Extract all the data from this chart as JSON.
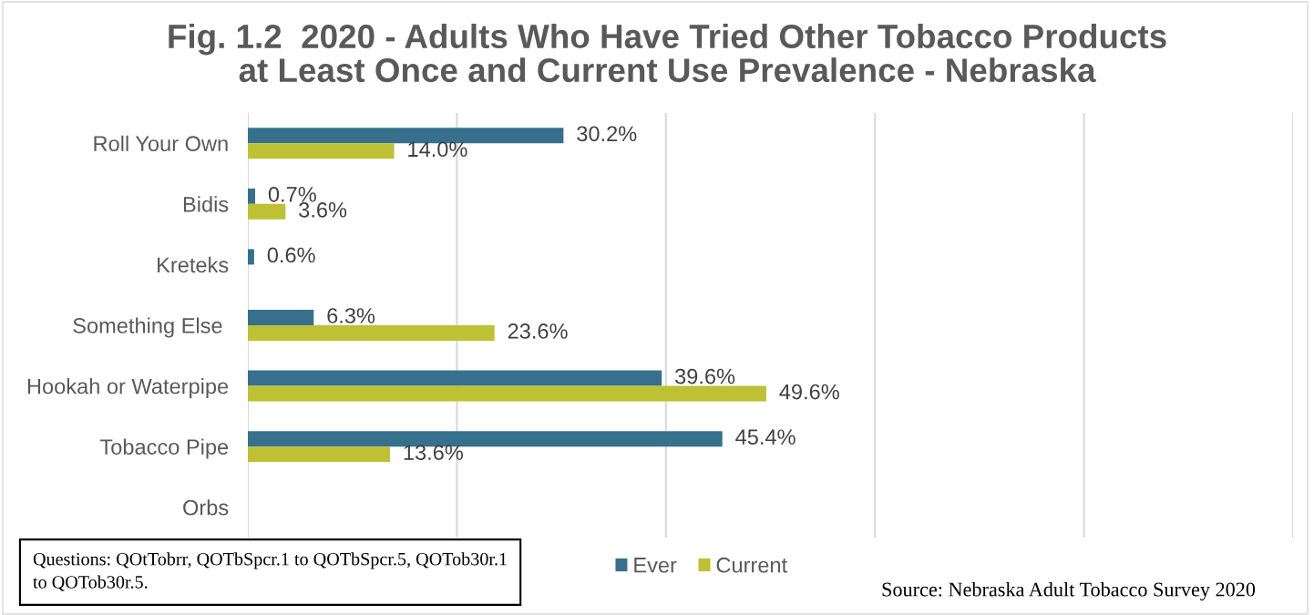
{
  "chart_data": {
    "type": "bar",
    "orientation": "horizontal",
    "title": "Fig. 1.2  2020 - Adults Who Have Tried Other Tobacco Products at Least Once and Current Use Prevalence - Nebraska",
    "categories": [
      "Roll Your Own",
      "Bidis",
      "Kreteks",
      "Something Else ",
      "Hookah or Waterpipe",
      "Tobacco Pipe",
      "Orbs"
    ],
    "series": [
      {
        "name": "Ever",
        "color": "#37708d",
        "values": [
          30.2,
          0.7,
          0.6,
          6.3,
          39.6,
          45.4,
          null
        ],
        "value_labels": [
          "30.2%",
          "0.7%",
          "0.6%",
          "6.3%",
          "39.6%",
          "45.4%",
          null
        ]
      },
      {
        "name": "Current",
        "color": "#bdc133",
        "values": [
          14.0,
          3.6,
          null,
          23.6,
          49.6,
          13.6,
          null
        ],
        "value_labels": [
          "14.0%",
          "3.6%",
          null,
          "23.6%",
          "49.6%",
          "13.6%",
          null
        ]
      }
    ],
    "xlim": [
      0,
      100
    ],
    "xticks": [
      {
        "value": 0,
        "label": null
      },
      {
        "value": 20,
        "label": null
      },
      {
        "value": 40,
        "label": null
      },
      {
        "value": 60,
        "label": null
      },
      {
        "value": 80,
        "label": null
      },
      {
        "value": 100,
        "label": null
      }
    ],
    "tick_labels": "y",
    "grid": "x",
    "legend": "bottom",
    "annotations": [
      "Questions: QOtTobrr, QOTbSpcr.1 to QOTbSpcr.5, QOTob30r.1 to QOTob30r.5.",
      "Source: Nebraska Adult Tobacco Survey 2020"
    ]
  }
}
